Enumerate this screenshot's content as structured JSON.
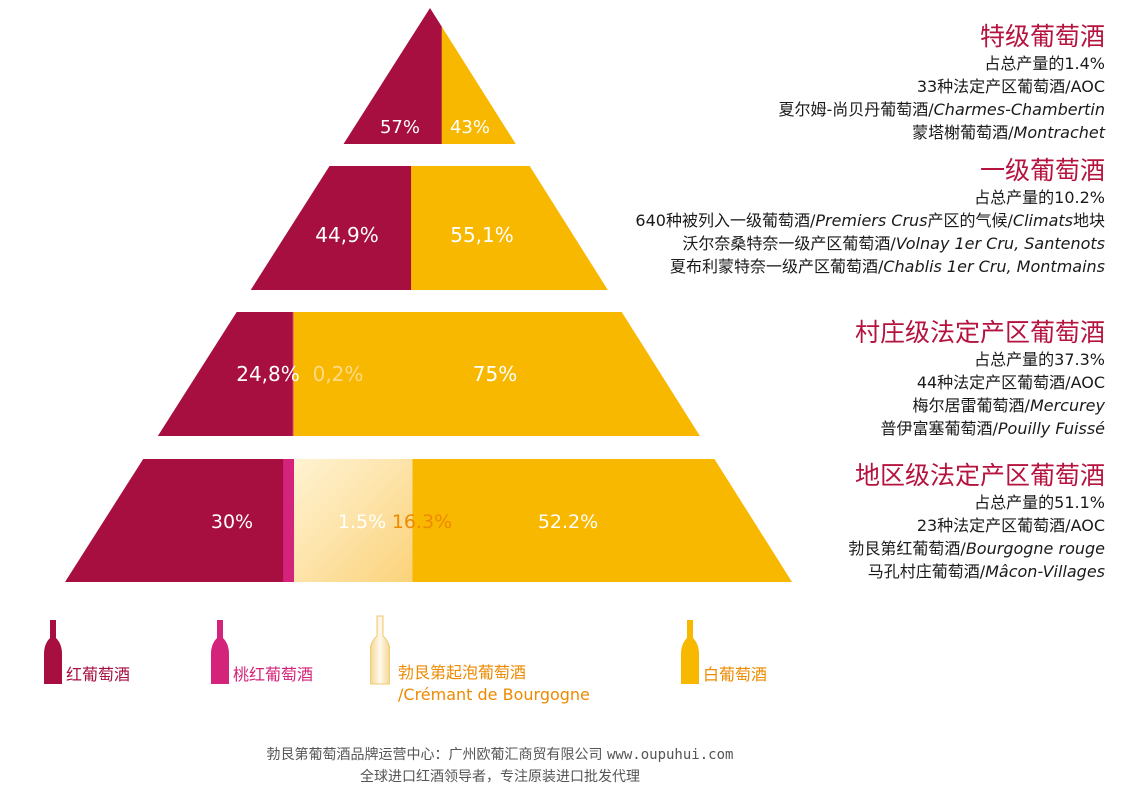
{
  "colors": {
    "red": "#a60f3f",
    "rose": "#d4237a",
    "cremant": "#fde3a8",
    "white": "#f8b800",
    "title": "#b5123e",
    "cremant_label": "#ee8a00"
  },
  "chart_data": {
    "type": "bar",
    "orientation": "stacked-horizontal-pyramid",
    "categories": [
      "特级葡萄酒",
      "一级葡萄酒",
      "村庄级法定产区葡萄酒",
      "地区级法定产区葡萄酒"
    ],
    "series": [
      {
        "name": "红葡萄酒",
        "values": [
          57,
          44.9,
          24.8,
          30
        ]
      },
      {
        "name": "桃红葡萄酒",
        "values": [
          0,
          0,
          0.2,
          1.5
        ]
      },
      {
        "name": "勃艮第起泡葡萄酒/Crémant de Bourgogne",
        "values": [
          0,
          0,
          0,
          16.3
        ]
      },
      {
        "name": "白葡萄酒",
        "values": [
          43,
          55.1,
          75,
          52.2
        ]
      }
    ],
    "data_labels": [
      [
        "57%",
        "",
        "",
        "43%"
      ],
      [
        "44,9%",
        "",
        "",
        "55,1%"
      ],
      [
        "24,8%",
        "0,2%",
        "",
        "75%"
      ],
      [
        "30%",
        "1.5%",
        "16.3%",
        "52.2%"
      ]
    ],
    "legend": "bottom"
  },
  "tiers": [
    {
      "title": "特级葡萄酒",
      "lines": [
        {
          "cn": "占总产量的1.4%",
          "it": ""
        },
        {
          "cn": "33种法定产区葡萄酒/AOC",
          "it": ""
        },
        {
          "cn": "夏尔姆-尚贝丹葡萄酒/",
          "it": "Charmes-Chambertin"
        },
        {
          "cn": "蒙塔榭葡萄酒/",
          "it": "Montrachet"
        }
      ]
    },
    {
      "title": "一级葡萄酒",
      "lines": [
        {
          "cn": "占总产量的10.2%",
          "it": ""
        },
        {
          "cn": "640种被列入一级葡萄酒/",
          "it": "Premiers Crus",
          "cn2": "产区的气候/",
          "it2": "Climats",
          "cn3": "地块"
        },
        {
          "cn": "沃尔奈桑特奈一级产区葡萄酒/",
          "it": "Volnay 1er Cru, Santenots"
        },
        {
          "cn": "夏布利蒙特奈一级产区葡萄酒/",
          "it": "Chablis 1er Cru, Montmains"
        }
      ]
    },
    {
      "title": "村庄级法定产区葡萄酒",
      "lines": [
        {
          "cn": "占总产量的37.3%",
          "it": ""
        },
        {
          "cn": "44种法定产区葡萄酒/AOC",
          "it": ""
        },
        {
          "cn": "梅尔居雷葡萄酒/",
          "it": "Mercurey"
        },
        {
          "cn": "普伊富塞葡萄酒/",
          "it": "Pouilly Fuissé"
        }
      ]
    },
    {
      "title": "地区级法定产区葡萄酒",
      "lines": [
        {
          "cn": "占总产量的51.1%",
          "it": ""
        },
        {
          "cn": "23种法定产区葡萄酒/AOC",
          "it": ""
        },
        {
          "cn": "勃艮第红葡萄酒/",
          "it": "Bourgogne rouge"
        },
        {
          "cn": "马孔村庄葡萄酒/",
          "it": "Mâcon-Villages"
        }
      ]
    }
  ],
  "legend": [
    {
      "label": "红葡萄酒",
      "sub": "",
      "color_key": "red"
    },
    {
      "label": "桃红葡萄酒",
      "sub": "",
      "color_key": "rose"
    },
    {
      "label": "勃艮第起泡葡萄酒",
      "sub": "/Crémant de Bourgogne",
      "color_key": "cremant"
    },
    {
      "label": "白葡萄酒",
      "sub": "",
      "color_key": "white"
    }
  ],
  "footer": {
    "line1_text": "勃艮第葡萄酒品牌运营中心：广州欧葡汇商贸有限公司",
    "line1_url": "www.oupuhui.com",
    "line2": "全球进口红酒领导者，专注原装进口批发代理"
  }
}
